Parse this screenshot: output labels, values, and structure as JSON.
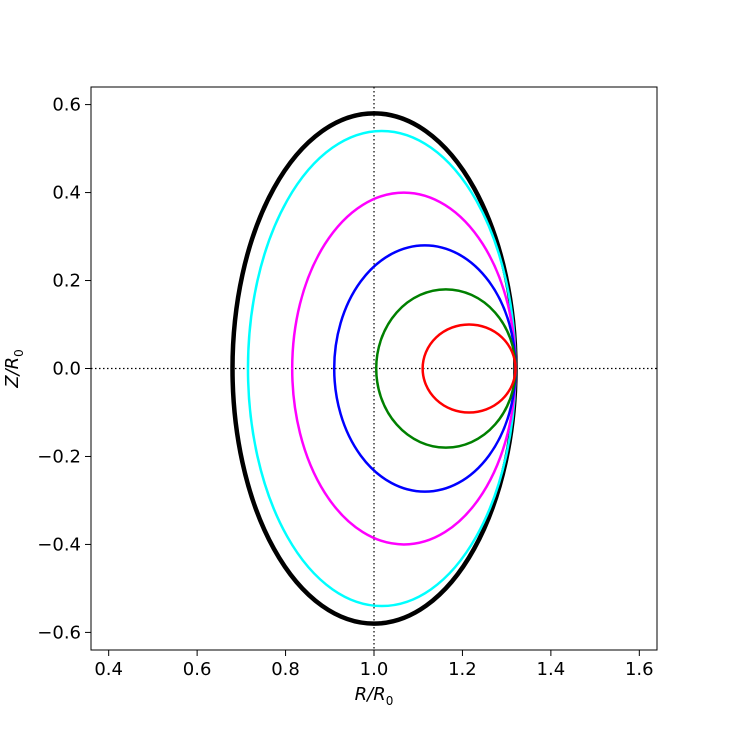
{
  "chart_data": {
    "type": "line",
    "title": "",
    "xlabel": "R/R0",
    "ylabel": "Z/R0",
    "xlabel_main": "R/R",
    "xlabel_sub": "0",
    "ylabel_main": "Z/R",
    "ylabel_sub": "0",
    "xlim": [
      0.36,
      1.64
    ],
    "ylim": [
      -0.64,
      0.64
    ],
    "x_ticks": [
      0.4,
      0.6,
      0.8,
      1.0,
      1.2,
      1.4,
      1.6
    ],
    "x_tick_labels": [
      "0.4",
      "0.6",
      "0.8",
      "1.0",
      "1.2",
      "1.4",
      "1.6"
    ],
    "y_ticks": [
      0.6,
      0.4,
      0.2,
      0.0,
      -0.2,
      -0.4,
      -0.6
    ],
    "y_tick_labels": [
      "0.6",
      "0.4",
      "0.2",
      "0.0",
      "−0.2",
      "−0.4",
      "−0.6"
    ],
    "grid": false,
    "reference_lines": {
      "x": 1.0,
      "y": 0.0,
      "style": "dotted"
    },
    "series": [
      {
        "color": "#000000",
        "r_min": 0.68,
        "r_max": 1.32,
        "z_max": 0.58
      },
      {
        "color": "#00ffff",
        "r_min": 0.715,
        "r_max": 1.32,
        "z_max": 0.54
      },
      {
        "color": "#ff00ff",
        "r_min": 0.815,
        "r_max": 1.32,
        "z_max": 0.4
      },
      {
        "color": "#0000ff",
        "r_min": 0.91,
        "r_max": 1.32,
        "z_max": 0.28
      },
      {
        "color": "#008000",
        "r_min": 1.005,
        "r_max": 1.32,
        "z_max": 0.18
      },
      {
        "color": "#ff0000",
        "r_min": 1.11,
        "r_max": 1.32,
        "z_max": 0.1
      }
    ]
  }
}
